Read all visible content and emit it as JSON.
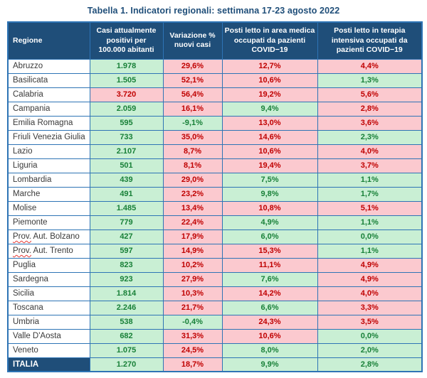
{
  "title": "Tabella 1. Indicatori regionali: settimana 17-23 agosto 2022",
  "colors": {
    "header_bg": "#1F4E79",
    "border_blue": "#2E74B5",
    "good_bg": "#C9EFD4",
    "good_text": "#188038",
    "bad_bg": "#FBC9CF",
    "bad_text": "#C00000",
    "title_color": "#1F4E79",
    "region_text": "#3A3A3A",
    "squiggle_color": "#E53935"
  },
  "table": {
    "headers": [
      "Regione",
      "Casi attualmente positivi per 100.000 abitanti",
      "Variazione % nuovi casi",
      "Posti letto in area medica occupati da pazienti COVID−19",
      "Posti letto in terapia intensiva occupati da pazienti COVID−19"
    ],
    "rows": [
      {
        "region": "Abruzzo",
        "values": [
          "1.978",
          "29,6%",
          "12,7%",
          "4,4%"
        ],
        "status": [
          "good",
          "bad",
          "bad",
          "bad"
        ]
      },
      {
        "region": "Basilicata",
        "values": [
          "1.505",
          "52,1%",
          "10,6%",
          "1,3%"
        ],
        "status": [
          "good",
          "bad",
          "bad",
          "good"
        ]
      },
      {
        "region": "Calabria",
        "values": [
          "3.720",
          "56,4%",
          "19,2%",
          "5,6%"
        ],
        "status": [
          "bad",
          "bad",
          "bad",
          "bad"
        ]
      },
      {
        "region": "Campania",
        "values": [
          "2.059",
          "16,1%",
          "9,4%",
          "2,8%"
        ],
        "status": [
          "good",
          "bad",
          "good",
          "bad"
        ]
      },
      {
        "region": "Emilia Romagna",
        "values": [
          "595",
          "-9,1%",
          "13,0%",
          "3,6%"
        ],
        "status": [
          "good",
          "good",
          "bad",
          "bad"
        ]
      },
      {
        "region": "Friuli Venezia Giulia",
        "values": [
          "733",
          "35,0%",
          "14,6%",
          "2,3%"
        ],
        "status": [
          "good",
          "bad",
          "bad",
          "good"
        ]
      },
      {
        "region": "Lazio",
        "values": [
          "2.107",
          "8,7%",
          "10,6%",
          "4,0%"
        ],
        "status": [
          "good",
          "bad",
          "bad",
          "bad"
        ]
      },
      {
        "region": "Liguria",
        "values": [
          "501",
          "8,1%",
          "19,4%",
          "3,7%"
        ],
        "status": [
          "good",
          "bad",
          "bad",
          "bad"
        ]
      },
      {
        "region": "Lombardia",
        "values": [
          "439",
          "29,0%",
          "7,5%",
          "1,1%"
        ],
        "status": [
          "good",
          "bad",
          "good",
          "good"
        ]
      },
      {
        "region": "Marche",
        "values": [
          "491",
          "23,2%",
          "9,8%",
          "1,7%"
        ],
        "status": [
          "good",
          "bad",
          "good",
          "good"
        ]
      },
      {
        "region": "Molise",
        "values": [
          "1.485",
          "13,4%",
          "10,8%",
          "5,1%"
        ],
        "status": [
          "good",
          "bad",
          "bad",
          "bad"
        ]
      },
      {
        "region": "Piemonte",
        "values": [
          "779",
          "22,4%",
          "4,9%",
          "1,1%"
        ],
        "status": [
          "good",
          "bad",
          "good",
          "good"
        ]
      },
      {
        "region": "Prov. Aut. Bolzano",
        "values": [
          "427",
          "17,9%",
          "6,0%",
          "0,0%"
        ],
        "status": [
          "good",
          "bad",
          "good",
          "good"
        ],
        "squiggle": "Prov."
      },
      {
        "region": "Prov. Aut. Trento",
        "values": [
          "597",
          "14,9%",
          "15,3%",
          "1,1%"
        ],
        "status": [
          "good",
          "bad",
          "bad",
          "good"
        ],
        "squiggle": "Prov."
      },
      {
        "region": "Puglia",
        "values": [
          "823",
          "10,2%",
          "11,1%",
          "4,9%"
        ],
        "status": [
          "good",
          "bad",
          "bad",
          "bad"
        ]
      },
      {
        "region": "Sardegna",
        "values": [
          "923",
          "27,9%",
          "7,6%",
          "4,9%"
        ],
        "status": [
          "good",
          "bad",
          "good",
          "bad"
        ]
      },
      {
        "region": "Sicilia",
        "values": [
          "1.814",
          "10,3%",
          "14,2%",
          "4,0%"
        ],
        "status": [
          "good",
          "bad",
          "bad",
          "bad"
        ]
      },
      {
        "region": "Toscana",
        "values": [
          "2.246",
          "21,7%",
          "6,6%",
          "3,3%"
        ],
        "status": [
          "good",
          "bad",
          "good",
          "bad"
        ]
      },
      {
        "region": "Umbria",
        "values": [
          "538",
          "-0,4%",
          "24,3%",
          "3,5%"
        ],
        "status": [
          "good",
          "good",
          "bad",
          "bad"
        ]
      },
      {
        "region": "Valle D'Aosta",
        "values": [
          "682",
          "31,3%",
          "10,6%",
          "0,0%"
        ],
        "status": [
          "good",
          "bad",
          "bad",
          "good"
        ]
      },
      {
        "region": "Veneto",
        "values": [
          "1.075",
          "24,5%",
          "8,0%",
          "2,0%"
        ],
        "status": [
          "good",
          "bad",
          "good",
          "good"
        ]
      },
      {
        "region": "ITALIA",
        "values": [
          "1.270",
          "18,7%",
          "9,9%",
          "2,8%"
        ],
        "status": [
          "good",
          "bad",
          "good",
          "good"
        ],
        "total": true
      }
    ]
  }
}
